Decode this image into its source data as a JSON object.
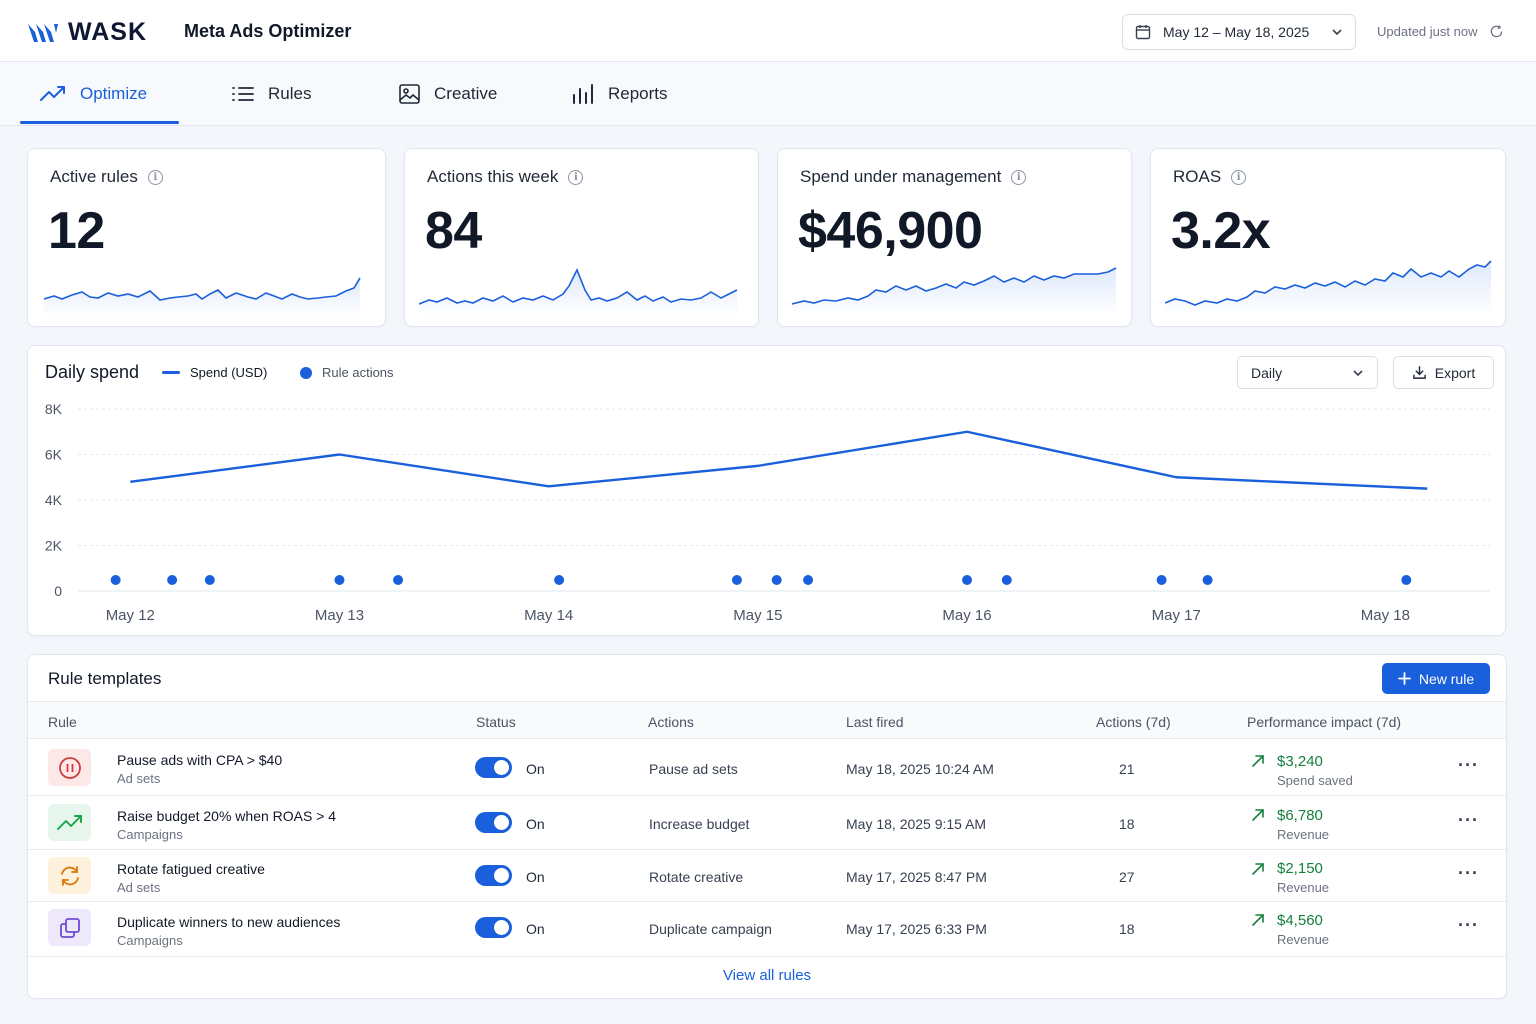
{
  "brand": {
    "name": "WASK",
    "app_title": "Meta Ads Optimizer"
  },
  "header": {
    "date_range": "May 12 – May 18, 2025",
    "updated": "Updated just now"
  },
  "tabs": [
    {
      "label": "Optimize",
      "icon": "trend-up-icon",
      "active": true
    },
    {
      "label": "Rules",
      "icon": "list-icon",
      "active": false
    },
    {
      "label": "Creative",
      "icon": "image-icon",
      "active": false
    },
    {
      "label": "Reports",
      "icon": "bar-chart-icon",
      "active": false
    }
  ],
  "kpis": [
    {
      "label": "Active rules",
      "value": "12"
    },
    {
      "label": "Actions this week",
      "value": "84"
    },
    {
      "label": "Spend under management",
      "value": "$46,900"
    },
    {
      "label": "ROAS",
      "value": "3.2x"
    }
  ],
  "daily_spend": {
    "title": "Daily spend",
    "legend_spend": "Spend (USD)",
    "legend_actions": "Rule actions",
    "granularity": "Daily",
    "export_label": "Export"
  },
  "chart_data": {
    "type": "line",
    "title": "Daily spend",
    "categories": [
      "May 12",
      "May 13",
      "May 14",
      "May 15",
      "May 16",
      "May 17",
      "May 18"
    ],
    "y_ticks": [
      "8K",
      "6K",
      "4K",
      "2K",
      "0"
    ],
    "ylim": [
      0,
      8000
    ],
    "grid": true,
    "legend": "top-left",
    "colors": {
      "spend": "#1a5fdc",
      "actions": "#1a5fdc"
    },
    "series": [
      {
        "name": "Spend (USD)",
        "x": [
          12.0,
          13.0,
          14.0,
          15.0,
          16.0,
          17.0,
          18.2
        ],
        "values": [
          4800,
          6000,
          4600,
          5500,
          7000,
          5000,
          4500
        ]
      },
      {
        "name": "Rule actions",
        "type": "scatter",
        "x": [
          11.93,
          12.2,
          12.38,
          13.0,
          13.28,
          14.05,
          14.9,
          15.09,
          15.24,
          16.0,
          16.19,
          16.93,
          17.15,
          18.1
        ]
      }
    ]
  },
  "rules_table": {
    "title": "Rule templates",
    "new_button": "New rule",
    "headers": [
      "Rule",
      "Status",
      "Actions",
      "Last fired",
      "Actions (7d)",
      "Performance impact (7d)"
    ],
    "rows": [
      {
        "icon": "pause-icon",
        "icon_color": "#d23b3b",
        "icon_bg": "#fde8e8",
        "name": "Pause ads with CPA > $40",
        "scope": "Ad sets",
        "status": "On",
        "action": "Pause ad sets",
        "last_fired": "May 18, 2025 10:24 AM",
        "count": "21",
        "impact": "$3,240",
        "impact_label": "Spend saved"
      },
      {
        "icon": "trend-up-icon",
        "icon_color": "#16a34a",
        "icon_bg": "#e6f6ec",
        "name": "Raise budget 20% when ROAS > 4",
        "scope": "Campaigns",
        "status": "On",
        "action": "Increase budget",
        "last_fired": "May 18, 2025 9:15 AM",
        "count": "18",
        "impact": "$6,780",
        "impact_label": "Revenue"
      },
      {
        "icon": "refresh-icon",
        "icon_color": "#d97706",
        "icon_bg": "#fdf1dc",
        "name": "Rotate fatigued creative",
        "scope": "Ad sets",
        "status": "On",
        "action": "Rotate creative",
        "last_fired": "May 17, 2025 8:47 PM",
        "count": "27",
        "impact": "$2,150",
        "impact_label": "Revenue"
      },
      {
        "icon": "duplicate-icon",
        "icon_color": "#6d4bd1",
        "icon_bg": "#eee8fb",
        "name": "Duplicate winners to new audiences",
        "scope": "Campaigns",
        "status": "On",
        "action": "Duplicate campaign",
        "last_fired": "May 17, 2025 6:33 PM",
        "count": "18",
        "impact": "$4,560",
        "impact_label": "Revenue"
      }
    ],
    "view_all": "View all rules"
  }
}
